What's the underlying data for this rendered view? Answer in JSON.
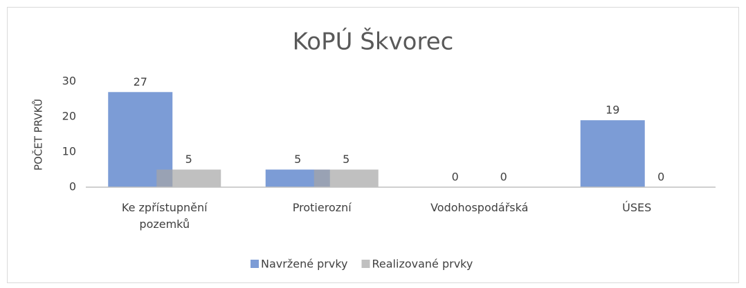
{
  "chart_data": {
    "type": "bar",
    "title": "KoPÚ Škvorec",
    "y_label": "POČET PRVKŮ",
    "categories": [
      "Ke zpřístupnění pozemků",
      "Protierozní",
      "Vodohospodářská",
      "ÚSES"
    ],
    "series": [
      {
        "name": "Navržené prvky",
        "color": "#4472c4",
        "values": [
          27,
          5,
          0,
          19
        ]
      },
      {
        "name": "Realizované prvky",
        "color": "#a5a5a5",
        "values": [
          5,
          5,
          0,
          0
        ]
      }
    ],
    "ylim": [
      0,
      30
    ],
    "yticks": [
      0,
      10,
      20,
      30
    ],
    "grid": false,
    "legend": "bottom"
  }
}
